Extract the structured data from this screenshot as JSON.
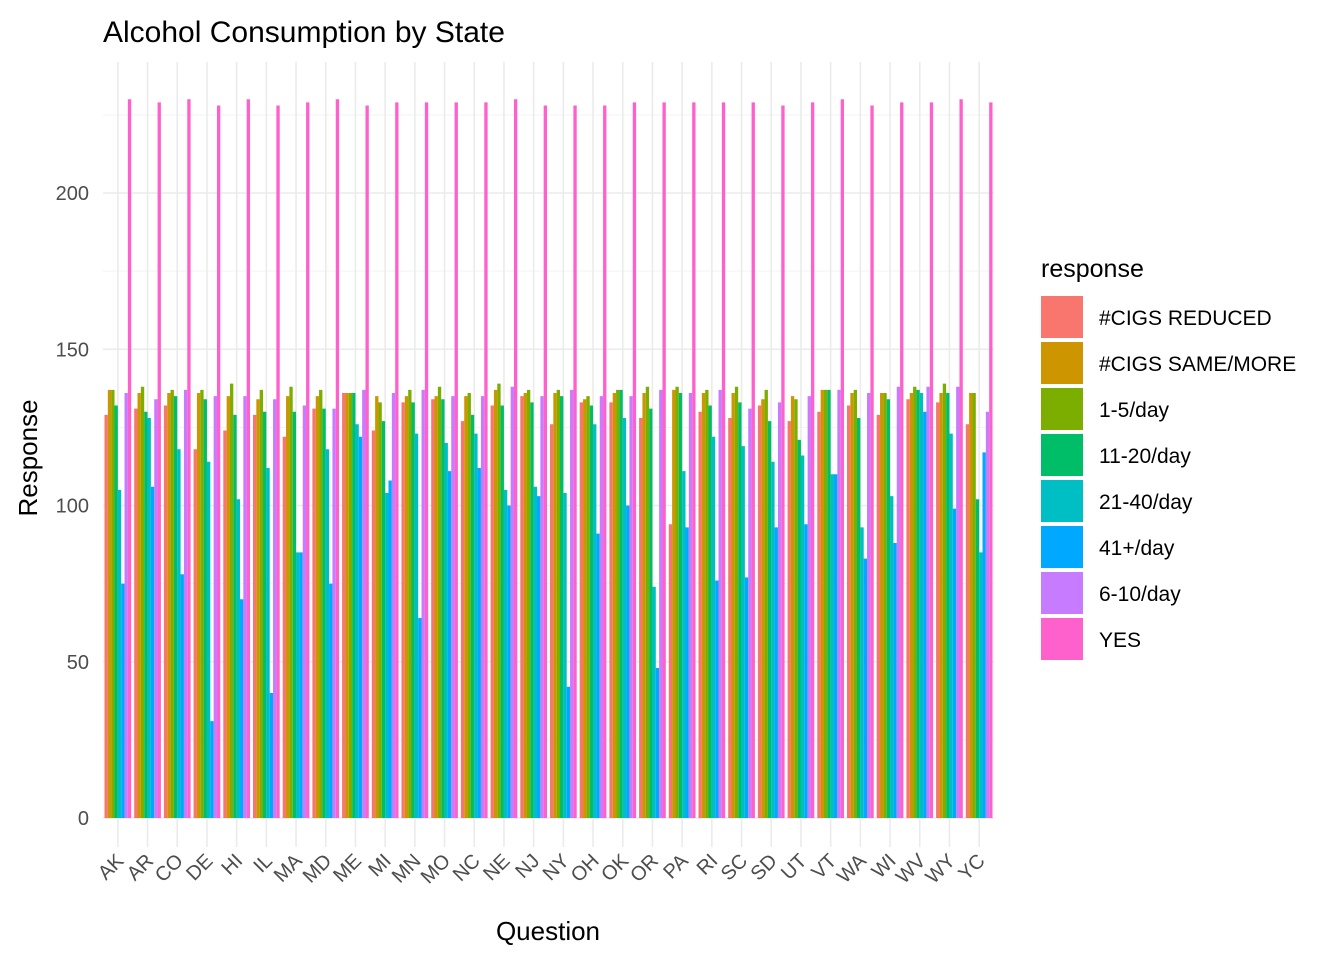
{
  "chart_data": {
    "type": "bar",
    "title": "Alcohol Consumption by State",
    "xlabel": "Question",
    "ylabel": "Response",
    "ylim": [
      -8,
      232
    ],
    "yticks": [
      0,
      50,
      100,
      150,
      200
    ],
    "grid": true,
    "legend_position": "right",
    "legend_title": "response",
    "categories": [
      "AK",
      "AR",
      "CO",
      "DE",
      "HI",
      "IL",
      "MA",
      "MD",
      "ME",
      "MI",
      "MN",
      "MO",
      "NC",
      "NE",
      "NJ",
      "NY",
      "OH",
      "OK",
      "OR",
      "PA",
      "RI",
      "SC",
      "SD",
      "UT",
      "VT",
      "WA",
      "WI",
      "WV",
      "WY",
      "YC"
    ],
    "series": [
      {
        "name": "#CIGS REDUCED",
        "color": "#F8766D",
        "values": [
          129,
          131,
          132,
          118,
          124,
          129,
          122,
          131,
          136,
          124,
          133,
          134,
          127,
          132,
          135,
          126,
          133,
          133,
          128,
          94,
          130,
          128,
          132,
          127,
          130,
          132,
          129,
          134,
          133,
          126
        ]
      },
      {
        "name": "#CIGS SAME/MORE",
        "color": "#CD9600",
        "values": [
          137,
          136,
          136,
          136,
          135,
          134,
          135,
          135,
          136,
          135,
          135,
          135,
          135,
          137,
          136,
          136,
          134,
          136,
          136,
          137,
          136,
          136,
          134,
          135,
          137,
          136,
          136,
          136,
          136,
          136
        ]
      },
      {
        "name": "1-5/day",
        "color": "#7CAE00",
        "values": [
          137,
          138,
          137,
          137,
          139,
          137,
          138,
          137,
          136,
          133,
          137,
          138,
          136,
          139,
          137,
          137,
          135,
          137,
          138,
          138,
          137,
          138,
          137,
          134,
          137,
          137,
          136,
          138,
          139,
          136
        ]
      },
      {
        "name": "11-20/day",
        "color": "#00BE67",
        "values": [
          132,
          130,
          135,
          134,
          129,
          130,
          130,
          131,
          136,
          127,
          133,
          134,
          129,
          132,
          133,
          135,
          132,
          137,
          131,
          136,
          132,
          133,
          127,
          121,
          137,
          128,
          134,
          137,
          136,
          102
        ]
      },
      {
        "name": "21-40/day",
        "color": "#00BFC4",
        "values": [
          105,
          128,
          118,
          114,
          102,
          112,
          85,
          118,
          126,
          104,
          123,
          120,
          123,
          105,
          106,
          104,
          126,
          128,
          74,
          111,
          122,
          119,
          114,
          116,
          110,
          93,
          103,
          136,
          123,
          85
        ]
      },
      {
        "name": "41+/day",
        "color": "#00A9FF",
        "values": [
          75,
          106,
          78,
          31,
          70,
          40,
          85,
          75,
          122,
          108,
          64,
          111,
          112,
          100,
          103,
          42,
          91,
          100,
          48,
          93,
          76,
          77,
          93,
          94,
          110,
          83,
          88,
          130,
          99,
          117
        ]
      },
      {
        "name": "6-10/day",
        "color": "#C77CFF",
        "values": [
          136,
          134,
          137,
          135,
          135,
          134,
          132,
          131,
          137,
          136,
          137,
          135,
          135,
          138,
          135,
          137,
          135,
          135,
          137,
          136,
          137,
          131,
          133,
          135,
          137,
          136,
          138,
          138,
          138,
          130
        ]
      },
      {
        "name": "YES",
        "color": "#FF61CC",
        "values": [
          230,
          229,
          230,
          228,
          230,
          228,
          229,
          230,
          228,
          229,
          229,
          229,
          229,
          230,
          228,
          228,
          228,
          229,
          229,
          229,
          229,
          229,
          228,
          229,
          230,
          228,
          229,
          229,
          230,
          229
        ]
      }
    ]
  }
}
